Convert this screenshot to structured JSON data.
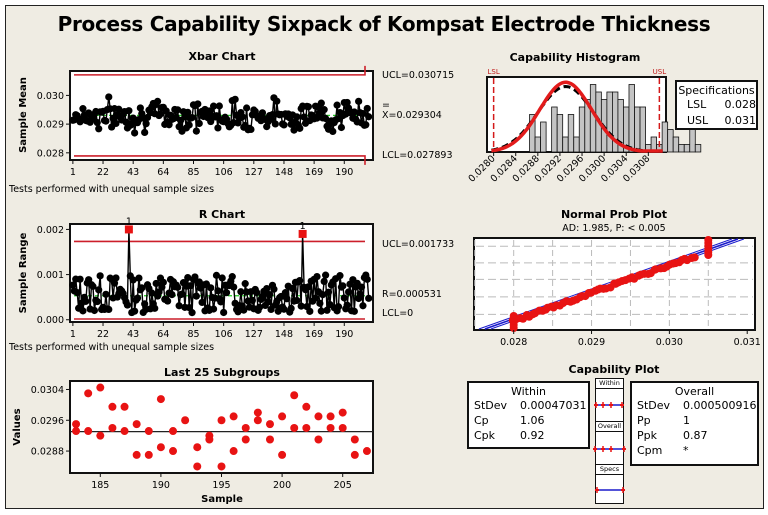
{
  "title": "Process Capability Sixpack of Kompsat Electrode Thickness",
  "chart_data": [
    {
      "type": "line",
      "id": "xbar",
      "title": "Xbar Chart",
      "ylabel": "Sample Mean",
      "xlabel": "",
      "ylim": [
        0.02775,
        0.03085
      ],
      "yticks": [
        "0.028",
        "0.029",
        "0.030"
      ],
      "ytick_values": [
        0.028,
        0.029,
        0.03
      ],
      "xticks": [
        "1",
        "22",
        "43",
        "64",
        "85",
        "106",
        "127",
        "148",
        "169",
        "190"
      ],
      "xlim": [
        -1,
        210
      ],
      "ucl": 0.030715,
      "center": 0.029304,
      "lcl": 0.027893,
      "ucl_label": "UCL=0.030715",
      "center_label": "X=0.029304",
      "center_symbol": "=",
      "lcl_label": "LCL=0.027893",
      "note": "Tests performed with unequal sample sizes",
      "n_points": 207,
      "series": [
        {
          "name": "Sample Mean",
          "seed": 7,
          "mean": 0.029304,
          "spread": 0.00033
        }
      ]
    },
    {
      "type": "line",
      "id": "rchart",
      "title": "R Chart",
      "ylabel": "Sample Range",
      "ylim": [
        -5e-05,
        0.00212
      ],
      "yticks": [
        "0.000",
        "0.001",
        "0.002"
      ],
      "ytick_values": [
        0.0,
        0.001,
        0.002
      ],
      "xticks": [
        "1",
        "22",
        "43",
        "64",
        "85",
        "106",
        "127",
        "148",
        "169",
        "190"
      ],
      "xlim": [
        -1,
        210
      ],
      "ucl": 0.001733,
      "center": 0.000531,
      "lcl": 0,
      "ucl_label": "UCL=0.001733",
      "center_label": "R=0.000531",
      "center_symbol": "-",
      "lcl_label": "LCL=0",
      "note": "Tests performed with unequal sample sizes",
      "n_points": 207,
      "out_of_control": [
        {
          "x": 40,
          "y": 0.002,
          "flag": "1"
        },
        {
          "x": 161,
          "y": 0.0019,
          "flag": "1"
        }
      ],
      "series": [
        {
          "name": "Sample Range",
          "seed": 13,
          "mean": 0.000531,
          "spread": 0.00035
        }
      ]
    },
    {
      "type": "scatter",
      "id": "last25",
      "title": "Last 25 Subgroups",
      "ylabel": "Values",
      "xlabel": "Sample",
      "ylim": [
        0.02823,
        0.03062
      ],
      "yticks": [
        "0.0288",
        "0.0296",
        "0.0304"
      ],
      "ytick_values": [
        0.0288,
        0.0296,
        0.0304
      ],
      "xticks": [
        "185",
        "190",
        "195",
        "200",
        "205"
      ],
      "xtick_values": [
        185,
        190,
        195,
        200,
        205
      ],
      "xlim": [
        182.5,
        207.5
      ],
      "center": 0.029304,
      "points": [
        [
          183,
          0.0295
        ],
        [
          183,
          0.02932
        ],
        [
          184,
          0.0303
        ],
        [
          184,
          0.02932
        ],
        [
          185,
          0.03045
        ],
        [
          185,
          0.0292
        ],
        [
          186,
          0.02995
        ],
        [
          186,
          0.0294
        ],
        [
          187,
          0.02995
        ],
        [
          187,
          0.02932
        ],
        [
          188,
          0.0295
        ],
        [
          188,
          0.0287
        ],
        [
          189,
          0.02932
        ],
        [
          189,
          0.0287
        ],
        [
          190,
          0.03015
        ],
        [
          190,
          0.0289
        ],
        [
          191,
          0.02932
        ],
        [
          191,
          0.0288
        ],
        [
          192,
          0.0296
        ],
        [
          193,
          0.0289
        ],
        [
          193,
          0.0284
        ],
        [
          194,
          0.0292
        ],
        [
          194,
          0.0291
        ],
        [
          195,
          0.0296
        ],
        [
          195,
          0.0284
        ],
        [
          196,
          0.0297
        ],
        [
          196,
          0.0288
        ],
        [
          197,
          0.0294
        ],
        [
          197,
          0.0291
        ],
        [
          198,
          0.0298
        ],
        [
          198,
          0.0296
        ],
        [
          199,
          0.0295
        ],
        [
          199,
          0.0291
        ],
        [
          200,
          0.0297
        ],
        [
          200,
          0.0287
        ],
        [
          201,
          0.03025
        ],
        [
          201,
          0.0294
        ],
        [
          202,
          0.02995
        ],
        [
          202,
          0.0294
        ],
        [
          203,
          0.0297
        ],
        [
          203,
          0.0291
        ],
        [
          204,
          0.0297
        ],
        [
          204,
          0.0294
        ],
        [
          205,
          0.0298
        ],
        [
          205,
          0.0294
        ],
        [
          206,
          0.0291
        ],
        [
          206,
          0.0287
        ],
        [
          207,
          0.0288
        ]
      ]
    },
    {
      "type": "bar",
      "id": "histogram",
      "title": "Capability Histogram",
      "xlim": [
        0.02788,
        0.03112
      ],
      "xticks": [
        "0.0280",
        "0.0284",
        "0.0288",
        "0.0292",
        "0.0296",
        "0.0300",
        "0.0304",
        "0.0308"
      ],
      "xtick_values": [
        0.028,
        0.0284,
        0.0288,
        0.0292,
        0.0296,
        0.03,
        0.0304,
        0.0308
      ],
      "lsl": 0.028,
      "usl": 0.031,
      "lsl_label": "LSL",
      "usl_label": "USL",
      "bin_start": 0.02835,
      "bin_width": 0.0001,
      "counts": [
        0,
        0,
        0,
        5,
        2,
        4,
        0,
        6,
        5,
        2,
        5,
        2,
        6,
        7,
        9,
        8,
        7,
        8,
        8,
        7,
        6,
        9,
        6,
        6,
        1,
        2,
        1,
        4,
        3,
        2,
        1,
        1,
        3,
        1,
        0,
        0
      ],
      "ymax": 10,
      "curves": [
        {
          "name": "Within",
          "mean": 0.029304,
          "sd": 0.00047031,
          "color": "#e21b1b"
        },
        {
          "name": "Overall",
          "mean": 0.029304,
          "sd": 0.000500916,
          "color": "#000000"
        }
      ]
    },
    {
      "type": "scatter",
      "id": "normprob",
      "title": "Normal Prob Plot",
      "subtitle": "AD: 1.985, P: < 0.005",
      "xlim": [
        0.02749,
        0.0311
      ],
      "xticks": [
        "0.028",
        "0.029",
        "0.030",
        "0.031"
      ],
      "xtick_values": [
        0.028,
        0.029,
        0.03,
        0.031
      ],
      "grid": true,
      "points_summary": "red points following fitted blue line from 0.028 to 0.0305, vertical cluster at 0.0305",
      "fit_line": {
        "x0": 0.0276,
        "x1": 0.031,
        "y0": 0.0,
        "y1": 1.0
      }
    }
  ],
  "specifications": {
    "title": "Specifications",
    "rows": [
      {
        "key": "LSL",
        "value": "0.028"
      },
      {
        "key": "USL",
        "value": "0.031"
      }
    ]
  },
  "capability": {
    "title": "Capability Plot",
    "within": {
      "title": "Within",
      "rows": [
        {
          "key": "StDev",
          "value": "0.00047031"
        },
        {
          "key": "Cp",
          "value": "1.06"
        },
        {
          "key": "Cpk",
          "value": "0.92"
        }
      ]
    },
    "overall": {
      "title": "Overall",
      "rows": [
        {
          "key": "StDev",
          "value": "0.000500916"
        },
        {
          "key": "Pp",
          "value": "1"
        },
        {
          "key": "Ppk",
          "value": "0.87"
        },
        {
          "key": "Cpm",
          "value": "*"
        }
      ]
    },
    "mini_labels": [
      "Within",
      "Overall",
      "Specs"
    ]
  },
  "colors": {
    "background": "#efece3",
    "control_limit": "#cc1f2a",
    "center_line": "#22cc22",
    "points": "#000000",
    "highlight": "#e81313",
    "histbar": "#c4c4c4",
    "fit_line": "#1a1acc"
  }
}
